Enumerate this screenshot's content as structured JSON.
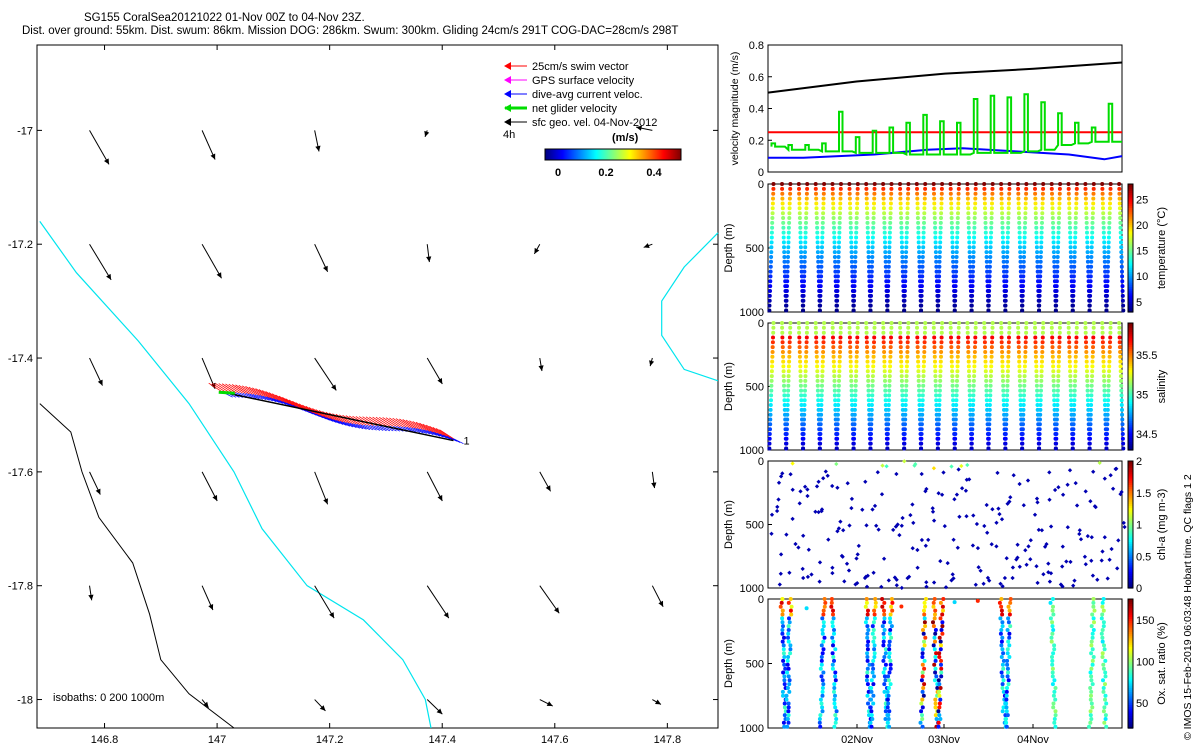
{
  "header": {
    "line1": "SG155 CoralSea20121022 01-Nov 00Z to 04-Nov 23Z.",
    "line2": "Dist. over ground: 55km. Dist. swum: 86km. Mission DOG: 286km. Swum: 300km. Gliding 24cm/s 291T COG-DAC=28cm/s 298T"
  },
  "credit": "© IMOS 15-Feb-2019 06:03:48 Hobart time. QC flags 1  2",
  "colors": {
    "swim": "#ff0000",
    "gps": "#ff00ff",
    "dac": "#0000ff",
    "netglider": "#00dd00",
    "sfcgeo": "#000000",
    "coast200": "#00e5ee",
    "isobath1000": "#000000"
  },
  "chart_data": [
    {
      "type": "map",
      "name": "track-map",
      "xlim": [
        146.68,
        147.89
      ],
      "ylim": [
        -18.05,
        -16.85
      ],
      "xticks": [
        146.8,
        147,
        147.2,
        147.4,
        147.6,
        147.8
      ],
      "xtick_labels": [
        "146.8",
        "147",
        "147.2",
        "147.4",
        "147.6",
        "147.8"
      ],
      "yticks": [
        -17,
        -17.2,
        -17.4,
        -17.6,
        -17.8,
        -18
      ],
      "ytick_labels": [
        "-17",
        "-17.2",
        "-17.4",
        "-17.6",
        "-17.8",
        "-18"
      ],
      "legend": [
        {
          "label": "25cm/s swim vector",
          "color_key": "swim"
        },
        {
          "label": "GPS surface velocity",
          "color_key": "gps"
        },
        {
          "label": "dive-avg current veloc.",
          "color_key": "dac"
        },
        {
          "label": "net glider velocity",
          "color_key": "netglider"
        },
        {
          "label": "sfc geo. vel. 04-Nov-2012",
          "color_key": "sfcgeo"
        }
      ],
      "legend_position": "top-right",
      "colorbar": {
        "prefix": "4h",
        "title": "(m/s)",
        "ticks": [
          "0",
          "0.2",
          "0.4"
        ]
      },
      "isobaths_label": "isobaths: 0   200  1000m",
      "track_start": [
        147.01,
        -17.46
      ],
      "track_end": [
        147.42,
        -17.545
      ],
      "track_end_label": "1",
      "geo_vectors": {
        "lons": [
          146.8,
          147.0,
          147.2,
          147.4,
          147.6,
          147.8
        ],
        "lats": [
          -17.0,
          -17.2,
          -17.4,
          -17.6,
          -17.8,
          -18.0
        ],
        "u": [
          [
            0.18,
            0.12,
            0.04,
            -0.02,
            null,
            -0.15
          ],
          [
            0.2,
            0.18,
            0.12,
            0.02,
            -0.05,
            -0.08
          ],
          [
            0.12,
            0.12,
            0.2,
            0.14,
            0.02,
            -0.02
          ],
          [
            0.1,
            0.14,
            0.12,
            0.14,
            0.1,
            0.02
          ],
          [
            0.02,
            0.1,
            0.18,
            0.2,
            0.18,
            0.1
          ],
          [
            null,
            0.06,
            0.1,
            0.14,
            0.12,
            0.08
          ]
        ],
        "v": [
          [
            -0.42,
            -0.36,
            -0.26,
            -0.08,
            null,
            0.04
          ],
          [
            -0.44,
            -0.42,
            -0.34,
            -0.22,
            -0.12,
            -0.04
          ],
          [
            -0.34,
            -0.38,
            -0.4,
            -0.32,
            -0.16,
            -0.1
          ],
          [
            -0.28,
            -0.36,
            -0.4,
            -0.36,
            -0.24,
            -0.2
          ],
          [
            -0.18,
            -0.3,
            -0.4,
            -0.4,
            -0.34,
            -0.26
          ],
          [
            null,
            -0.1,
            -0.14,
            -0.18,
            -0.08,
            -0.06
          ]
        ]
      }
    },
    {
      "type": "line",
      "name": "velocity-magnitude",
      "ylabel": "velocity magnitude (m/s)",
      "ylim": [
        0,
        0.8
      ],
      "yticks": [
        "0",
        "0.2",
        "0.4",
        "0.6",
        "0.8"
      ],
      "series": [
        {
          "name": "net-glider-speed",
          "color_key": "sfcgeo",
          "x": [
            0,
            0.25,
            0.5,
            0.75,
            1
          ],
          "y": [
            0.5,
            0.57,
            0.62,
            0.65,
            0.69
          ]
        },
        {
          "name": "swim-speed",
          "color_key": "swim",
          "x": [
            0,
            1
          ],
          "y": [
            0.25,
            0.25
          ]
        },
        {
          "name": "dive-avg-current",
          "color_key": "dac",
          "x": [
            0,
            0.1,
            0.3,
            0.45,
            0.55,
            0.7,
            0.85,
            0.95,
            1
          ],
          "y": [
            0.09,
            0.09,
            0.11,
            0.14,
            0.15,
            0.13,
            0.11,
            0.08,
            0.1
          ]
        },
        {
          "name": "gps-surface-velocity",
          "color_key": "netglider",
          "peaks": [
            0.18,
            0.17,
            0.17,
            0.18,
            0.38,
            0.22,
            0.26,
            0.28,
            0.31,
            0.36,
            0.32,
            0.31,
            0.46,
            0.48,
            0.47,
            0.49,
            0.44,
            0.37,
            0.31,
            0.28,
            0.43
          ],
          "base": [
            0.16,
            0.14,
            0.14,
            0.13,
            0.13,
            0.12,
            0.12,
            0.12,
            0.11,
            0.11,
            0.11,
            0.11,
            0.12,
            0.12,
            0.12,
            0.13,
            0.14,
            0.17,
            0.18,
            0.19,
            0.19
          ]
        }
      ]
    },
    {
      "type": "scatter",
      "name": "temperature-section",
      "ylabel": "Depth (m)",
      "ylim": [
        1000,
        0
      ],
      "yticks": [
        "0",
        "500",
        "1000"
      ],
      "colorbar_label": "temperature (°C)",
      "colorbar_ticks": [
        "5",
        "10",
        "15",
        "20",
        "25"
      ],
      "clim": [
        3,
        28
      ],
      "n_profiles": 42,
      "pattern": "vyo"
    },
    {
      "type": "scatter",
      "name": "salinity-section",
      "ylabel": "Depth (m)",
      "ylim": [
        1000,
        0
      ],
      "yticks": [
        "0",
        "500",
        "1000"
      ],
      "colorbar_label": "salinity",
      "colorbar_ticks": [
        "34.5",
        "35",
        "35.5"
      ],
      "clim": [
        34.3,
        35.9
      ],
      "n_profiles": 42,
      "pattern": "vgo"
    },
    {
      "type": "scatter",
      "name": "chl-section",
      "ylabel": "Depth (m)",
      "ylim": [
        1000,
        0
      ],
      "yticks": [
        "0",
        "500",
        "1000"
      ],
      "colorbar_label": "chl-a (mg m-3)",
      "colorbar_ticks": [
        "0",
        "0.5",
        "1",
        "1.5",
        "2"
      ],
      "clim": [
        0,
        2
      ],
      "n_profiles": 42,
      "pattern": "sparse"
    },
    {
      "type": "scatter",
      "name": "oxygen-section",
      "ylabel": "Depth (m)",
      "ylim": [
        1000,
        0
      ],
      "yticks": [
        "0",
        "500",
        "1000"
      ],
      "colorbar_label": "Ox. sat. ratio (%)",
      "colorbar_ticks": [
        "50",
        "100",
        "150"
      ],
      "clim": [
        20,
        175
      ],
      "n_profiles": 42,
      "pattern": "clusters",
      "xtick_labels": [
        "02Nov",
        "03Nov",
        "04Nov"
      ]
    }
  ]
}
